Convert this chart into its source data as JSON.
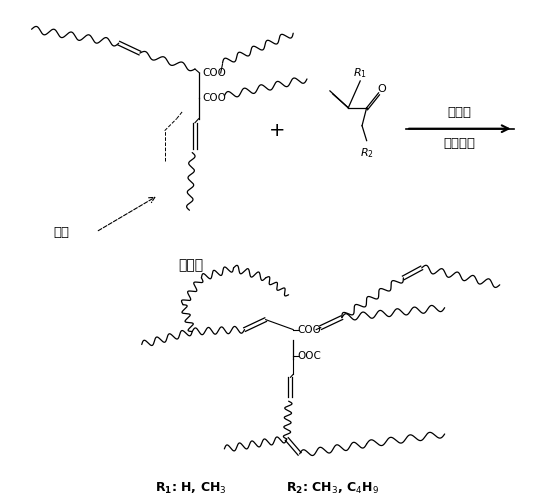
{
  "background_color": "#ffffff",
  "text_color": "#000000",
  "label_digou_oil": "地沟油",
  "label_shuangjian": "双键",
  "label_yifajie": "引发剂",
  "label_juhe": "聚合反应",
  "figsize": [
    5.46,
    5.04
  ],
  "dpi": 100
}
